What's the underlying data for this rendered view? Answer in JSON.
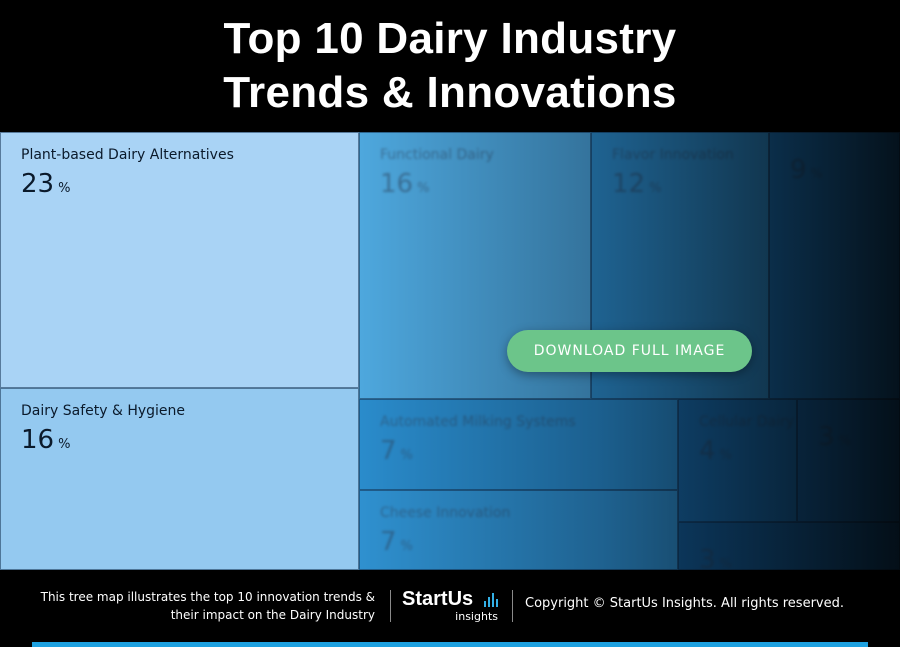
{
  "header": {
    "title_line1": "Top 10 Dairy Industry",
    "title_line2": "Trends & Innovations"
  },
  "chart_data": {
    "type": "treemap",
    "unit": "%",
    "items": [
      {
        "label": "Plant-based Dairy Alternatives",
        "value": 23,
        "color": "#a9d3f5"
      },
      {
        "label": "Dairy Safety & Hygiene",
        "value": 16,
        "color": "#94c9f0"
      },
      {
        "label": "Functional Dairy",
        "value": 16,
        "color": "#4ea8de"
      },
      {
        "label": "Flavor Innovation",
        "value": 12,
        "color": "#2e8fcd"
      },
      {
        "label": "",
        "value": 9,
        "color": "#1d78bd"
      },
      {
        "label": "Automated Milking Systems",
        "value": 7,
        "color": "#2a8ccc"
      },
      {
        "label": "Cheese Innovation",
        "value": 7,
        "color": "#2f91d0"
      },
      {
        "label": "Cellular Dairy",
        "value": 4,
        "color": "#1a6fb0"
      },
      {
        "label": "",
        "value": 3,
        "color": "#1869aa"
      },
      {
        "label": "",
        "value": 3,
        "color": "#16629f"
      }
    ]
  },
  "cta": {
    "label": "DOWNLOAD FULL IMAGE",
    "color": "#6cc58a"
  },
  "footer": {
    "description_line1": "This tree map illustrates the top 10 innovation trends &",
    "description_line2": "their impact on the Dairy Industry",
    "logo_name": "StartUs",
    "logo_sub": "insights",
    "copyright": "Copyright © StartUs Insights. All rights reserved.",
    "accent": "#1ea1e0"
  }
}
